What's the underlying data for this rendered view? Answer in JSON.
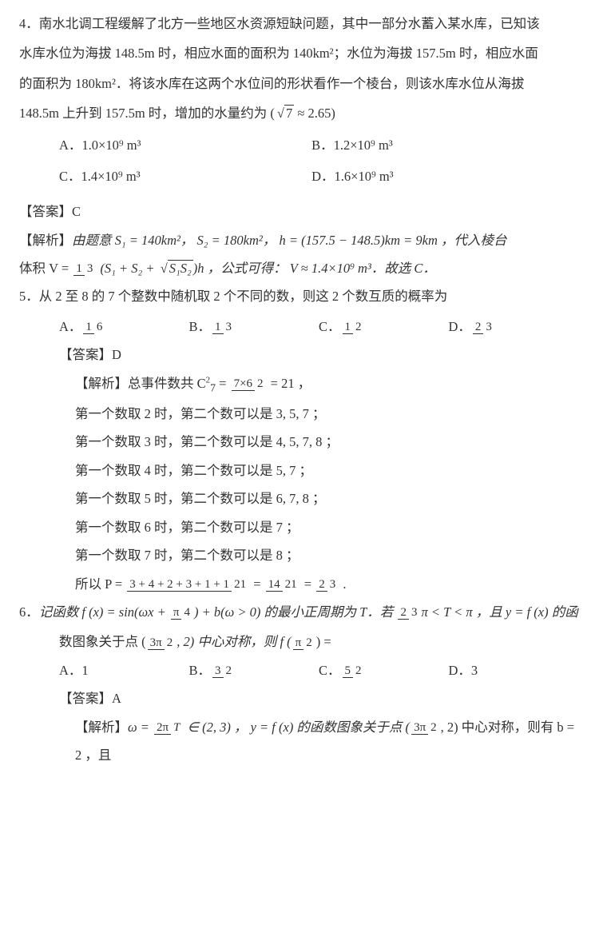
{
  "q4": {
    "num": "4．",
    "text1": "南水北调工程缓解了北方一些地区水资源短缺问题，其中一部分水蓄入某水库，已知该",
    "text2": "水库水位为海拔 148.5m 时，相应水面的面积为 140km²；水位为海拔 157.5m 时，相应水面",
    "text3": "的面积为 180km²．将该水库在这两个水位间的形状看作一个棱台，则该水库水位从海拔",
    "text4_a": "148.5m 上升到 157.5m 时，增加的水量约为 (",
    "text4_b": " ≈ 2.65)",
    "sqrt7": "7",
    "opts": {
      "A": "A．1.0×10⁹ m³",
      "B": "B．1.2×10⁹ m³",
      "C": "C．1.4×10⁹ m³",
      "D": "D．1.6×10⁹ m³"
    },
    "answer_label": "【答案】",
    "answer": "C",
    "exp_label": "【解析】",
    "exp_a": "由题意 S₁ = 140km²， S₂ = 180km²， h = (157.5 − 148.5)km = 9km ，代入棱台",
    "exp_b_pre": "体积 V = ",
    "exp_b_post": "h ，公式可得： V ≈ 1.4×10⁹ m³．故选 C．",
    "frac13_n": "1",
    "frac13_d": "3",
    "paren_body_a": "(S₁ + S₂ + ",
    "paren_body_b": ")",
    "sqrt_s1s2": "S₁S₂"
  },
  "q5": {
    "num": "5．",
    "text": "从 2 至 8 的 7 个整数中随机取 2 个不同的数，则这 2 个数互质的概率为",
    "opts": {
      "A": "A．",
      "Afn": "1",
      "Afd": "6",
      "B": "B．",
      "Bfn": "1",
      "Bfd": "3",
      "C": "C．",
      "Cfn": "1",
      "Cfd": "2",
      "D": "D．",
      "Dfn": "2",
      "Dfd": "3"
    },
    "answer_label": "【答案】",
    "answer": "D",
    "exp_label": "【解析】",
    "exp1_a": "总事件数共 C",
    "exp1_sup": "2",
    "exp1_sub": "7",
    "exp1_b": " = ",
    "exp1_fr_n": "7×6",
    "exp1_fr_d": "2",
    "exp1_c": " = 21 ，",
    "line2": "第一个数取 2 时，第二个数可以是 3, 5, 7 ；",
    "line3": "第一个数取 3 时，第二个数可以是 4, 5, 7, 8 ；",
    "line4": "第一个数取 4 时，第二个数可以是 5, 7 ；",
    "line5": "第一个数取 5 时，第二个数可以是 6, 7, 8 ；",
    "line6": "第一个数取 6 时，第二个数可以是 7 ；",
    "line7": "第一个数取 7 时，第二个数可以是 8 ；",
    "line8_a": "所以 P = ",
    "line8_fr1_n": "3 + 4 + 2 + 3 + 1 + 1",
    "line8_fr1_d": "21",
    "line8_b": " = ",
    "line8_fr2_n": "14",
    "line8_fr2_d": "21",
    "line8_c": " = ",
    "line8_fr3_n": "2",
    "line8_fr3_d": "3",
    "line8_d": " ."
  },
  "q6": {
    "num": "6．",
    "text_a": "记函数 f (x) = sin(ωx + ",
    "pi4_n": "π",
    "pi4_d": "4",
    "text_b": ") + b(ω > 0) 的最小正周期为 T．若 ",
    "frac23_n": "2",
    "frac23_d": "3",
    "text_c": "π < T < π ，且 y = f (x) 的函",
    "text2_a": "数图象关于点 (",
    "p3pi2_n": "3π",
    "p3pi2_d": "2",
    "text2_b": ", 2) 中心对称，则 f (",
    "ppi2_n": "π",
    "ppi2_d": "2",
    "text2_c": ") =",
    "opts": {
      "A": "A．1",
      "B": "B．",
      "Bfn": "3",
      "Bfd": "2",
      "C": "C．",
      "Cfn": "5",
      "Cfd": "2",
      "D": "D．3"
    },
    "answer_label": "【答案】",
    "answer": "A",
    "exp_label": "【解析】",
    "exp_a": "ω = ",
    "exp_fr_n": "2π",
    "exp_fr_d": "T",
    "exp_b": " ∈ (2, 3) ， y = f (x) 的函数图象关于点 (",
    "exp_p_n": "3π",
    "exp_p_d": "2",
    "exp_c": ", 2) 中心对称，则有 b = 2 ，且"
  }
}
